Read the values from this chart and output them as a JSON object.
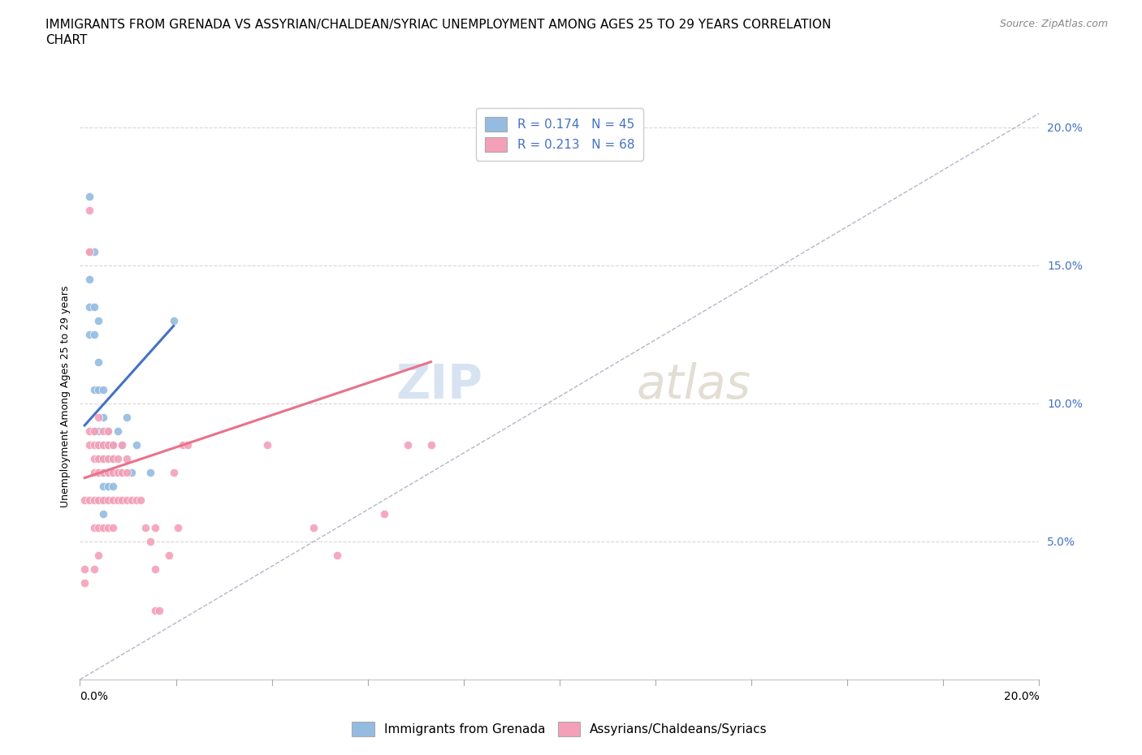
{
  "title_line1": "IMMIGRANTS FROM GRENADA VS ASSYRIAN/CHALDEAN/SYRIAC UNEMPLOYMENT AMONG AGES 25 TO 29 YEARS CORRELATION",
  "title_line2": "CHART",
  "source": "Source: ZipAtlas.com",
  "ylabel": "Unemployment Among Ages 25 to 29 years",
  "xlim": [
    0.0,
    0.205
  ],
  "ylim": [
    0.0,
    0.205
  ],
  "yticks": [
    0.05,
    0.1,
    0.15,
    0.2
  ],
  "ytick_labels": [
    "5.0%",
    "10.0%",
    "15.0%",
    "20.0%"
  ],
  "legend_items": [
    {
      "label": "R = 0.174   N = 45",
      "color": "#a8c4e0"
    },
    {
      "label": "R = 0.213   N = 68",
      "color": "#f4a7b4"
    }
  ],
  "bottom_legend": [
    {
      "label": "Immigrants from Grenada",
      "color": "#a8c4e0"
    },
    {
      "label": "Assyrians/Chaldeans/Syriacs",
      "color": "#f4a7b4"
    }
  ],
  "blue_scatter_x": [
    0.002,
    0.002,
    0.002,
    0.002,
    0.002,
    0.003,
    0.003,
    0.003,
    0.003,
    0.003,
    0.004,
    0.004,
    0.004,
    0.004,
    0.004,
    0.004,
    0.004,
    0.004,
    0.005,
    0.005,
    0.005,
    0.005,
    0.005,
    0.005,
    0.005,
    0.005,
    0.005,
    0.006,
    0.006,
    0.006,
    0.006,
    0.006,
    0.007,
    0.007,
    0.007,
    0.007,
    0.008,
    0.008,
    0.009,
    0.009,
    0.01,
    0.011,
    0.012,
    0.015,
    0.02
  ],
  "blue_scatter_y": [
    0.175,
    0.155,
    0.145,
    0.135,
    0.125,
    0.155,
    0.135,
    0.125,
    0.105,
    0.09,
    0.13,
    0.115,
    0.105,
    0.09,
    0.085,
    0.075,
    0.085,
    0.08,
    0.105,
    0.095,
    0.085,
    0.08,
    0.075,
    0.075,
    0.07,
    0.065,
    0.06,
    0.09,
    0.085,
    0.08,
    0.075,
    0.07,
    0.085,
    0.08,
    0.075,
    0.07,
    0.09,
    0.075,
    0.085,
    0.075,
    0.095,
    0.075,
    0.085,
    0.075,
    0.13
  ],
  "pink_scatter_x": [
    0.001,
    0.001,
    0.001,
    0.002,
    0.002,
    0.002,
    0.002,
    0.002,
    0.003,
    0.003,
    0.003,
    0.003,
    0.003,
    0.003,
    0.003,
    0.004,
    0.004,
    0.004,
    0.004,
    0.004,
    0.004,
    0.004,
    0.005,
    0.005,
    0.005,
    0.005,
    0.005,
    0.005,
    0.006,
    0.006,
    0.006,
    0.006,
    0.006,
    0.006,
    0.007,
    0.007,
    0.007,
    0.007,
    0.007,
    0.008,
    0.008,
    0.008,
    0.009,
    0.009,
    0.009,
    0.01,
    0.01,
    0.01,
    0.011,
    0.012,
    0.013,
    0.014,
    0.015,
    0.016,
    0.016,
    0.016,
    0.017,
    0.019,
    0.02,
    0.021,
    0.022,
    0.023,
    0.04,
    0.05,
    0.055,
    0.065,
    0.07,
    0.075
  ],
  "pink_scatter_y": [
    0.065,
    0.04,
    0.035,
    0.17,
    0.155,
    0.09,
    0.085,
    0.065,
    0.09,
    0.085,
    0.08,
    0.075,
    0.065,
    0.055,
    0.04,
    0.095,
    0.085,
    0.08,
    0.075,
    0.065,
    0.055,
    0.045,
    0.09,
    0.085,
    0.08,
    0.075,
    0.065,
    0.055,
    0.09,
    0.085,
    0.08,
    0.075,
    0.065,
    0.055,
    0.085,
    0.08,
    0.075,
    0.065,
    0.055,
    0.08,
    0.075,
    0.065,
    0.085,
    0.075,
    0.065,
    0.08,
    0.075,
    0.065,
    0.065,
    0.065,
    0.065,
    0.055,
    0.05,
    0.055,
    0.04,
    0.025,
    0.025,
    0.045,
    0.075,
    0.055,
    0.085,
    0.085,
    0.085,
    0.055,
    0.045,
    0.06,
    0.085,
    0.085
  ],
  "blue_line_x": [
    0.001,
    0.02
  ],
  "blue_line_y": [
    0.092,
    0.128
  ],
  "pink_line_x": [
    0.001,
    0.075
  ],
  "pink_line_y": [
    0.073,
    0.115
  ],
  "dashed_line_x": [
    0.0,
    0.205
  ],
  "dashed_line_y": [
    0.0,
    0.205
  ],
  "blue_color": "#93bce0",
  "pink_color": "#f4a0b8",
  "blue_line_color": "#4472c4",
  "pink_line_color": "#e8728a",
  "dashed_color": "#b0b8c8",
  "watermark_zip": "ZIP",
  "watermark_atlas": "atlas",
  "background_color": "#ffffff",
  "grid_color": "#d8d8d8",
  "title_fontsize": 11,
  "axis_label_fontsize": 9,
  "tick_fontsize": 10,
  "legend_fontsize": 11,
  "source_fontsize": 9
}
